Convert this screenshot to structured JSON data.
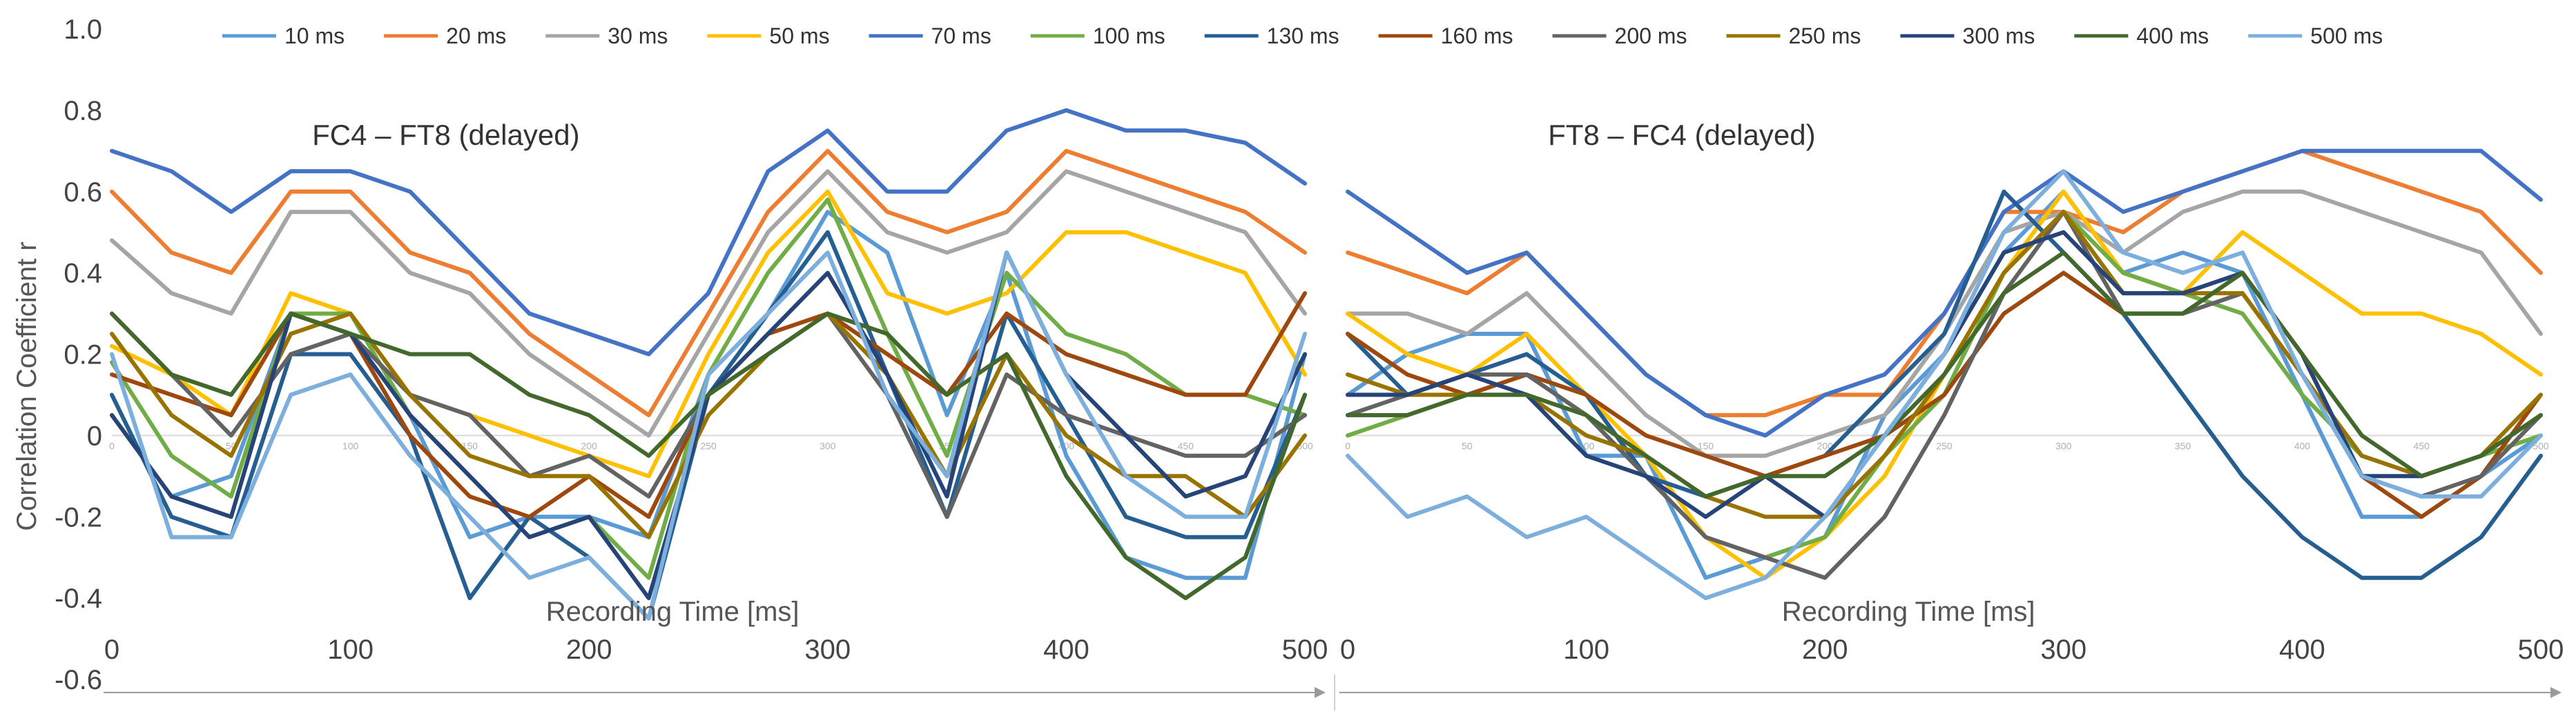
{
  "chart_data": {
    "type": "line",
    "ylabel": "Correlation Coefficient r",
    "xlabel": "Recording Time [ms]",
    "xlim": [
      0,
      500
    ],
    "ylim": [
      -0.6,
      1.0
    ],
    "y_ticks": [
      "1.0",
      "0.8",
      "0.6",
      "0.4",
      "0.2",
      "0",
      "-0.2",
      "-0.4",
      "-0.6"
    ],
    "x_ticks": [
      "0",
      "100",
      "200",
      "300",
      "400",
      "500"
    ],
    "minor_x_ticks": [
      "0",
      "50",
      "100",
      "150",
      "200",
      "250",
      "300",
      "350",
      "400",
      "450",
      "500"
    ],
    "legend": [
      {
        "name": "10 ms",
        "color": "#5B9BD5"
      },
      {
        "name": "20 ms",
        "color": "#ED7D31"
      },
      {
        "name": "30 ms",
        "color": "#A5A5A5"
      },
      {
        "name": "50 ms",
        "color": "#FFC000"
      },
      {
        "name": "70 ms",
        "color": "#4472C4"
      },
      {
        "name": "100 ms",
        "color": "#70AD47"
      },
      {
        "name": "130 ms",
        "color": "#255E91"
      },
      {
        "name": "160 ms",
        "color": "#9E480E"
      },
      {
        "name": "200 ms",
        "color": "#636363"
      },
      {
        "name": "250 ms",
        "color": "#997300"
      },
      {
        "name": "300 ms",
        "color": "#264478"
      },
      {
        "name": "400 ms",
        "color": "#43682B"
      },
      {
        "name": "500 ms",
        "color": "#7CAFDD"
      }
    ],
    "x": [
      0,
      25,
      50,
      75,
      100,
      125,
      150,
      175,
      200,
      225,
      250,
      275,
      300,
      325,
      350,
      375,
      400,
      425,
      450,
      475,
      500
    ],
    "panels": [
      {
        "title": "FC4 – FT8 (delayed)",
        "series": [
          {
            "name": "10 ms",
            "values": [
              0.05,
              -0.15,
              -0.1,
              0.3,
              0.25,
              0.05,
              -0.25,
              -0.2,
              -0.2,
              -0.25,
              0.15,
              0.3,
              0.55,
              0.45,
              0.05,
              0.4,
              -0.05,
              -0.3,
              -0.35,
              -0.35,
              0.2
            ]
          },
          {
            "name": "20 ms",
            "values": [
              0.6,
              0.45,
              0.4,
              0.6,
              0.6,
              0.45,
              0.4,
              0.25,
              0.15,
              0.05,
              0.3,
              0.55,
              0.7,
              0.55,
              0.5,
              0.55,
              0.7,
              0.65,
              0.6,
              0.55,
              0.45
            ]
          },
          {
            "name": "30 ms",
            "values": [
              0.48,
              0.35,
              0.3,
              0.55,
              0.55,
              0.4,
              0.35,
              0.2,
              0.1,
              0.0,
              0.25,
              0.5,
              0.65,
              0.5,
              0.45,
              0.5,
              0.65,
              0.6,
              0.55,
              0.5,
              0.3
            ]
          },
          {
            "name": "50 ms",
            "values": [
              0.22,
              0.15,
              0.05,
              0.35,
              0.3,
              0.1,
              0.05,
              0.0,
              -0.05,
              -0.1,
              0.2,
              0.45,
              0.6,
              0.35,
              0.3,
              0.35,
              0.5,
              0.5,
              0.45,
              0.4,
              0.15
            ]
          },
          {
            "name": "70 ms",
            "values": [
              0.7,
              0.65,
              0.55,
              0.65,
              0.65,
              0.6,
              0.45,
              0.3,
              0.25,
              0.2,
              0.35,
              0.65,
              0.75,
              0.6,
              0.6,
              0.75,
              0.8,
              0.75,
              0.75,
              0.72,
              0.62
            ]
          },
          {
            "name": "100 ms",
            "values": [
              0.18,
              -0.05,
              -0.15,
              0.3,
              0.3,
              0.05,
              -0.1,
              -0.25,
              -0.2,
              -0.35,
              0.15,
              0.4,
              0.58,
              0.25,
              -0.05,
              0.4,
              0.25,
              0.2,
              0.1,
              0.1,
              0.05
            ]
          },
          {
            "name": "130 ms",
            "values": [
              0.1,
              -0.2,
              -0.25,
              0.2,
              0.2,
              0.0,
              -0.4,
              -0.2,
              -0.3,
              -0.45,
              0.1,
              0.3,
              0.5,
              0.15,
              -0.2,
              0.3,
              0.05,
              -0.2,
              -0.25,
              -0.25,
              0.1
            ]
          },
          {
            "name": "160 ms",
            "values": [
              0.15,
              0.1,
              0.05,
              0.3,
              0.25,
              0.0,
              -0.15,
              -0.2,
              -0.1,
              -0.2,
              0.1,
              0.25,
              0.3,
              0.2,
              0.1,
              0.3,
              0.2,
              0.15,
              0.1,
              0.1,
              0.35
            ]
          },
          {
            "name": "200 ms",
            "values": [
              0.3,
              0.15,
              0.0,
              0.2,
              0.25,
              0.1,
              0.05,
              -0.1,
              -0.05,
              -0.15,
              0.1,
              0.2,
              0.3,
              0.1,
              -0.2,
              0.15,
              0.05,
              0.0,
              -0.05,
              -0.05,
              0.05
            ]
          },
          {
            "name": "250 ms",
            "values": [
              0.25,
              0.05,
              -0.05,
              0.25,
              0.3,
              0.1,
              -0.05,
              -0.1,
              -0.1,
              -0.25,
              0.05,
              0.2,
              0.3,
              0.15,
              -0.1,
              0.2,
              0.0,
              -0.1,
              -0.1,
              -0.2,
              0.0
            ]
          },
          {
            "name": "300 ms",
            "values": [
              0.05,
              -0.15,
              -0.2,
              0.3,
              0.25,
              0.05,
              -0.1,
              -0.25,
              -0.2,
              -0.4,
              0.1,
              0.25,
              0.4,
              0.15,
              -0.15,
              0.45,
              0.15,
              0.0,
              -0.15,
              -0.1,
              0.2
            ]
          },
          {
            "name": "400 ms",
            "values": [
              0.3,
              0.15,
              0.1,
              0.3,
              0.25,
              0.2,
              0.2,
              0.1,
              0.05,
              -0.05,
              0.1,
              0.2,
              0.3,
              0.25,
              0.1,
              0.2,
              -0.1,
              -0.3,
              -0.4,
              -0.3,
              0.1
            ]
          },
          {
            "name": "500 ms",
            "values": [
              0.2,
              -0.25,
              -0.25,
              0.1,
              0.15,
              -0.05,
              -0.2,
              -0.35,
              -0.3,
              -0.45,
              0.15,
              0.3,
              0.45,
              0.1,
              -0.1,
              0.45,
              0.15,
              -0.1,
              -0.2,
              -0.2,
              0.25
            ]
          }
        ]
      },
      {
        "title": "FT8 – FC4 (delayed)",
        "series": [
          {
            "name": "10 ms",
            "values": [
              0.1,
              0.2,
              0.25,
              0.25,
              -0.05,
              -0.05,
              -0.35,
              -0.3,
              -0.25,
              0.05,
              0.2,
              0.45,
              0.6,
              0.4,
              0.45,
              0.4,
              0.1,
              -0.2,
              -0.2,
              -0.1,
              0.0
            ]
          },
          {
            "name": "20 ms",
            "values": [
              0.45,
              0.4,
              0.35,
              0.45,
              0.3,
              0.15,
              0.05,
              0.05,
              0.1,
              0.1,
              0.3,
              0.55,
              0.55,
              0.5,
              0.6,
              0.65,
              0.7,
              0.65,
              0.6,
              0.55,
              0.4
            ]
          },
          {
            "name": "30 ms",
            "values": [
              0.3,
              0.3,
              0.25,
              0.35,
              0.2,
              0.05,
              -0.05,
              -0.05,
              0.0,
              0.05,
              0.25,
              0.5,
              0.55,
              0.45,
              0.55,
              0.6,
              0.6,
              0.55,
              0.5,
              0.45,
              0.25
            ]
          },
          {
            "name": "50 ms",
            "values": [
              0.3,
              0.2,
              0.15,
              0.25,
              0.1,
              -0.05,
              -0.25,
              -0.35,
              -0.25,
              -0.1,
              0.15,
              0.4,
              0.6,
              0.4,
              0.35,
              0.5,
              0.4,
              0.3,
              0.3,
              0.25,
              0.15
            ]
          },
          {
            "name": "70 ms",
            "values": [
              0.6,
              0.5,
              0.4,
              0.45,
              0.3,
              0.15,
              0.05,
              0.0,
              0.1,
              0.15,
              0.3,
              0.55,
              0.65,
              0.55,
              0.6,
              0.65,
              0.7,
              0.7,
              0.7,
              0.7,
              0.58
            ]
          },
          {
            "name": "100 ms",
            "values": [
              0.0,
              0.05,
              0.1,
              0.15,
              0.05,
              -0.1,
              -0.25,
              -0.3,
              -0.25,
              -0.05,
              0.1,
              0.4,
              0.55,
              0.4,
              0.35,
              0.3,
              0.1,
              -0.05,
              -0.1,
              -0.05,
              0.0
            ]
          },
          {
            "name": "130 ms",
            "values": [
              0.25,
              0.1,
              0.15,
              0.2,
              0.1,
              -0.1,
              -0.15,
              -0.1,
              -0.05,
              0.1,
              0.25,
              0.6,
              0.45,
              0.3,
              0.1,
              -0.1,
              -0.25,
              -0.35,
              -0.35,
              -0.25,
              -0.05
            ]
          },
          {
            "name": "160 ms",
            "values": [
              0.25,
              0.15,
              0.1,
              0.15,
              0.1,
              0.0,
              -0.05,
              -0.1,
              -0.05,
              0.0,
              0.1,
              0.3,
              0.4,
              0.3,
              0.3,
              0.4,
              0.2,
              -0.1,
              -0.2,
              -0.1,
              0.1
            ]
          },
          {
            "name": "200 ms",
            "values": [
              0.05,
              0.1,
              0.15,
              0.15,
              0.05,
              -0.1,
              -0.25,
              -0.3,
              -0.35,
              -0.2,
              0.05,
              0.35,
              0.55,
              0.3,
              0.3,
              0.35,
              0.15,
              -0.1,
              -0.15,
              -0.1,
              0.05
            ]
          },
          {
            "name": "250 ms",
            "values": [
              0.15,
              0.1,
              0.1,
              0.1,
              0.0,
              -0.05,
              -0.15,
              -0.2,
              -0.2,
              -0.05,
              0.15,
              0.4,
              0.55,
              0.35,
              0.35,
              0.35,
              0.15,
              -0.05,
              -0.1,
              -0.05,
              0.1
            ]
          },
          {
            "name": "300 ms",
            "values": [
              0.1,
              0.1,
              0.15,
              0.1,
              -0.05,
              -0.1,
              -0.2,
              -0.1,
              -0.2,
              0.0,
              0.2,
              0.45,
              0.5,
              0.35,
              0.35,
              0.4,
              0.2,
              -0.1,
              -0.1,
              -0.05,
              0.05
            ]
          },
          {
            "name": "400 ms",
            "values": [
              0.05,
              0.05,
              0.1,
              0.1,
              0.05,
              -0.05,
              -0.15,
              -0.1,
              -0.1,
              0.0,
              0.15,
              0.35,
              0.45,
              0.3,
              0.3,
              0.4,
              0.2,
              0.0,
              -0.1,
              -0.05,
              0.05
            ]
          },
          {
            "name": "500 ms",
            "values": [
              -0.05,
              -0.2,
              -0.15,
              -0.25,
              -0.2,
              -0.3,
              -0.4,
              -0.35,
              -0.2,
              0.0,
              0.2,
              0.5,
              0.65,
              0.45,
              0.4,
              0.45,
              0.15,
              -0.1,
              -0.15,
              -0.15,
              0.0
            ]
          }
        ]
      }
    ]
  }
}
